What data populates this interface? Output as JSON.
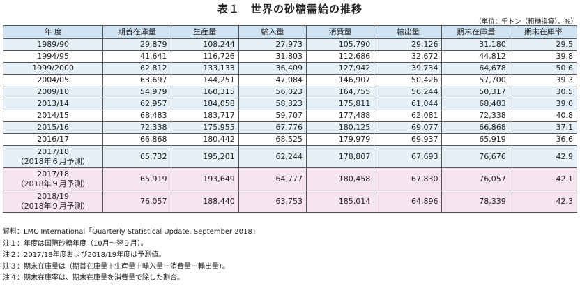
{
  "title": "表１　世界の砂糖需給の推移",
  "unit": "（単位：千トン（粗糖換算）、%）",
  "columns": [
    "年 度",
    "期首在庫量",
    "生産量",
    "輸入量",
    "消費量",
    "輸出量",
    "期末在庫量",
    "期末在庫率"
  ],
  "rows": [
    {
      "year": [
        "1989/90"
      ],
      "vals": [
        "29,879",
        "108,244",
        "27,973",
        "105,790",
        "29,126",
        "31,180",
        "29.5"
      ]
    },
    {
      "year": [
        "1994/95"
      ],
      "vals": [
        "41,641",
        "116,726",
        "31,803",
        "112,686",
        "32,672",
        "44,812",
        "39.8"
      ]
    },
    {
      "year": [
        "1999/2000"
      ],
      "vals": [
        "62,812",
        "133,133",
        "36,409",
        "127,942",
        "39,734",
        "64,678",
        "50.6"
      ]
    },
    {
      "year": [
        "2004/05"
      ],
      "vals": [
        "63,697",
        "144,251",
        "47,084",
        "146,907",
        "50,426",
        "57,700",
        "39.3"
      ]
    },
    {
      "year": [
        "2009/10"
      ],
      "vals": [
        "54,979",
        "160,315",
        "56,023",
        "164,755",
        "56,244",
        "50,317",
        "30.5"
      ]
    },
    {
      "year": [
        "2013/14"
      ],
      "vals": [
        "62,957",
        "184,058",
        "58,323",
        "175,811",
        "61,044",
        "68,483",
        "39.0"
      ]
    },
    {
      "year": [
        "2014/15"
      ],
      "vals": [
        "68,483",
        "183,717",
        "59,707",
        "177,488",
        "62,081",
        "72,338",
        "40.8"
      ]
    },
    {
      "year": [
        "2015/16"
      ],
      "vals": [
        "72,338",
        "175,955",
        "67,776",
        "180,125",
        "69,077",
        "66,868",
        "37.1"
      ]
    },
    {
      "year": [
        "2016/17"
      ],
      "vals": [
        "66,868",
        "180,442",
        "68,525",
        "179,979",
        "69,937",
        "65,919",
        "36.6"
      ]
    },
    {
      "year": [
        "2017/18",
        "（2018年６月予測）"
      ],
      "vals": [
        "65,732",
        "195,201",
        "62,244",
        "178,807",
        "67,693",
        "76,676",
        "42.9"
      ]
    },
    {
      "year": [
        "2017/18",
        "（2018年９月予測）"
      ],
      "vals": [
        "65,919",
        "193,649",
        "64,777",
        "180,458",
        "67,830",
        "76,057",
        "42.1"
      ]
    },
    {
      "year": [
        "2018/19",
        "（2018年９月予測）"
      ],
      "vals": [
        "76,057",
        "188,440",
        "63,753",
        "185,014",
        "64,896",
        "78,339",
        "42.3"
      ]
    }
  ],
  "notes": [
    "資料：LMC International「Quarterly Statistical Update, September 2018」",
    "注１：年度は国際砂糖年度（10月～翌９月）。",
    "注２：2017/18年度および2018/19年度は予測値。",
    "注３：期末在庫量は（期首在庫量＋生産量＋輸入量－消費量－輸出量）。",
    "注４：期末在庫率は、期末在庫量を消費量で除した割合。"
  ]
}
